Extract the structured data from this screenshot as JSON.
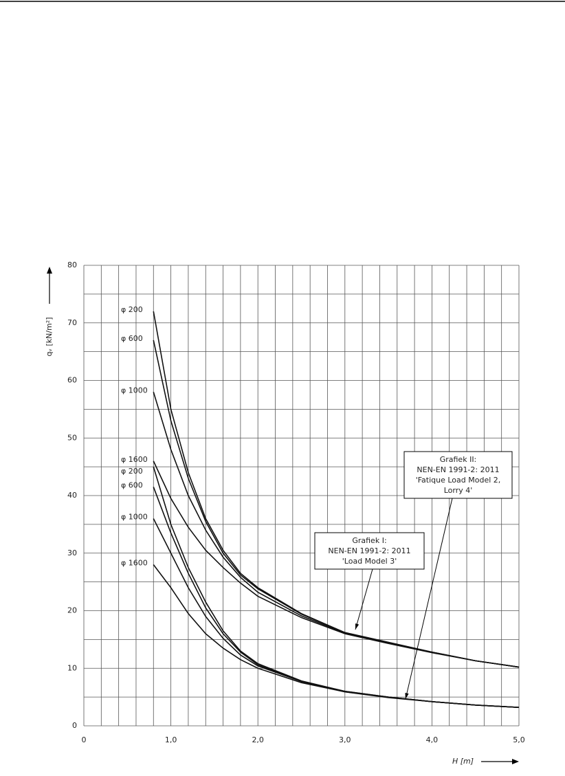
{
  "chart_data": {
    "type": "line",
    "x": [
      0.8,
      1.0,
      1.2,
      1.4,
      1.6,
      1.8,
      2.0,
      2.5,
      3.0,
      3.5,
      4.0,
      4.5,
      5.0
    ],
    "series": [
      {
        "name": "φ 200",
        "color": "#111",
        "values": [
          72,
          55,
          44,
          36,
          30.5,
          26.5,
          24,
          19.5,
          16.2,
          14.5,
          12.8,
          11.3,
          10.2
        ]
      },
      {
        "name": "φ 600",
        "color": "#111",
        "values": [
          67,
          53,
          43,
          35.5,
          30,
          26.2,
          23.8,
          19.4,
          16.2,
          14.5,
          12.8,
          11.3,
          10.2
        ]
      },
      {
        "name": "φ 1000",
        "color": "#111",
        "values": [
          58,
          48,
          40,
          34,
          29.3,
          25.8,
          23.2,
          19.1,
          16.1,
          14.4,
          12.8,
          11.3,
          10.2
        ]
      },
      {
        "name": "φ 1600",
        "color": "#111",
        "values": [
          46,
          39.5,
          34.5,
          30.5,
          27.5,
          24.8,
          22.5,
          18.8,
          16,
          14.3,
          12.7,
          11.3,
          10.2
        ]
      },
      {
        "name": "φ 200",
        "color": "#111",
        "values": [
          45,
          35,
          27.5,
          21.5,
          16.5,
          13,
          10.8,
          7.8,
          6,
          5,
          4.2,
          3.6,
          3.2
        ]
      },
      {
        "name": "φ 600",
        "color": "#111",
        "values": [
          41.5,
          33.5,
          26.5,
          20.5,
          16,
          12.8,
          10.6,
          7.7,
          6,
          5,
          4.2,
          3.6,
          3.2
        ]
      },
      {
        "name": "φ 1000",
        "color": "#111",
        "values": [
          36,
          30,
          24,
          19,
          15.2,
          12.3,
          10.4,
          7.7,
          5.9,
          5,
          4.2,
          3.6,
          3.2
        ]
      },
      {
        "name": "φ 1600",
        "color": "#111",
        "values": [
          28,
          24,
          19.5,
          16,
          13.5,
          11.5,
          10,
          7.5,
          5.9,
          4.9,
          4.2,
          3.6,
          3.2
        ]
      }
    ],
    "xlim": [
      0,
      5
    ],
    "ylim": [
      0,
      80
    ],
    "xticks": [
      0,
      {
        "value": 1,
        "label": "1,0"
      },
      {
        "value": 2,
        "label": "2,0"
      },
      {
        "value": 3,
        "label": "3,0"
      },
      {
        "value": 4,
        "label": "4,0"
      },
      {
        "value": 5,
        "label": "5,0"
      }
    ],
    "yticks": [
      0,
      10,
      20,
      30,
      40,
      50,
      60,
      70,
      80
    ],
    "xgrid": [
      0.2,
      0.4,
      0.6,
      0.8,
      1.2,
      1.4,
      1.6,
      1.8,
      2.2,
      2.4,
      2.6,
      2.8,
      3.2,
      3.4,
      3.6,
      3.8,
      4.2,
      4.4,
      4.6,
      4.8
    ],
    "ygrid": [
      5,
      15,
      25,
      35,
      45,
      55,
      65,
      75
    ],
    "xlabel": "H [m]",
    "ylabel": "qᵥ [kN/m²]",
    "annotations": [
      {
        "lines": [
          "Grafiek I:",
          "NEN-EN 1991-2: 2011",
          "'Load Model 3'"
        ]
      },
      {
        "lines": [
          "Grafiek II:",
          "NEN-EN 1991-2: 2011",
          "'Fatique Load Model 2,",
          "Lorry 4'"
        ]
      }
    ]
  }
}
